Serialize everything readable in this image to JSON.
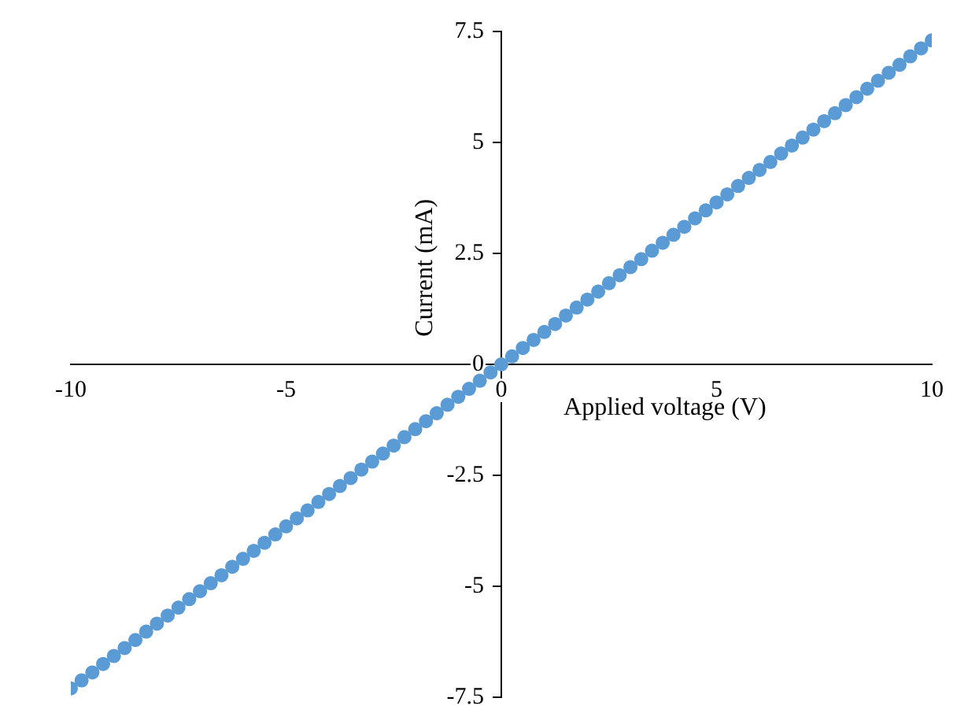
{
  "chart_data": {
    "type": "scatter",
    "xlabel": "Applied voltage (V)",
    "ylabel": "Current (mA)",
    "xlim": [
      -10,
      10
    ],
    "xticks": [
      -10,
      -5,
      0,
      5,
      10
    ],
    "ylim": [
      -7.5,
      7.5
    ],
    "yticks": [
      {
        "value": -7.5,
        "label": "-7.5"
      },
      -5,
      {
        "value": -2.5,
        "label": "-2.5"
      },
      0,
      {
        "value": 2.5,
        "label": "2.5"
      },
      5,
      {
        "value": 7.5,
        "label": "7.5"
      }
    ],
    "grid": false,
    "legend": false,
    "marker": "circle",
    "series": [
      {
        "color": "#5b9bd5",
        "x": [
          -10,
          -9.75,
          -9.5,
          -9.25,
          -9,
          -8.75,
          -8.5,
          -8.25,
          -8,
          -7.75,
          -7.5,
          -7.25,
          -7,
          -6.75,
          -6.5,
          -6.25,
          -6,
          -5.75,
          -5.5,
          -5.25,
          -5,
          -4.75,
          -4.5,
          -4.25,
          -4,
          -3.75,
          -3.5,
          -3.25,
          -3,
          -2.75,
          -2.5,
          -2.25,
          -2,
          -1.75,
          -1.5,
          -1.25,
          -1,
          -0.75,
          -0.5,
          -0.25,
          0,
          0.25,
          0.5,
          0.75,
          1,
          1.25,
          1.5,
          1.75,
          2,
          2.25,
          2.5,
          2.75,
          3,
          3.25,
          3.5,
          3.75,
          4,
          4.25,
          4.5,
          4.75,
          5,
          5.25,
          5.5,
          5.75,
          6,
          6.25,
          6.5,
          6.75,
          7,
          7.25,
          7.5,
          7.75,
          8,
          8.25,
          8.5,
          8.75,
          9,
          9.25,
          9.5,
          9.75,
          10
        ],
        "values": [
          -7.3,
          -7.12,
          -6.94,
          -6.75,
          -6.57,
          -6.39,
          -6.21,
          -6.02,
          -5.84,
          -5.66,
          -5.48,
          -5.29,
          -5.11,
          -4.93,
          -4.75,
          -4.56,
          -4.38,
          -4.2,
          -4.02,
          -3.83,
          -3.65,
          -3.47,
          -3.29,
          -3.1,
          -2.92,
          -2.74,
          -2.56,
          -2.37,
          -2.19,
          -2.01,
          -1.83,
          -1.64,
          -1.46,
          -1.28,
          -1.1,
          -0.91,
          -0.73,
          -0.55,
          -0.37,
          -0.18,
          0,
          0.18,
          0.37,
          0.55,
          0.73,
          0.91,
          1.1,
          1.28,
          1.46,
          1.64,
          1.83,
          2.01,
          2.19,
          2.37,
          2.56,
          2.74,
          2.92,
          3.1,
          3.29,
          3.47,
          3.65,
          3.83,
          4.02,
          4.2,
          4.38,
          4.56,
          4.75,
          4.93,
          5.11,
          5.29,
          5.48,
          5.66,
          5.84,
          6.02,
          6.21,
          6.39,
          6.57,
          6.75,
          6.94,
          7.12,
          7.3
        ]
      }
    ]
  }
}
